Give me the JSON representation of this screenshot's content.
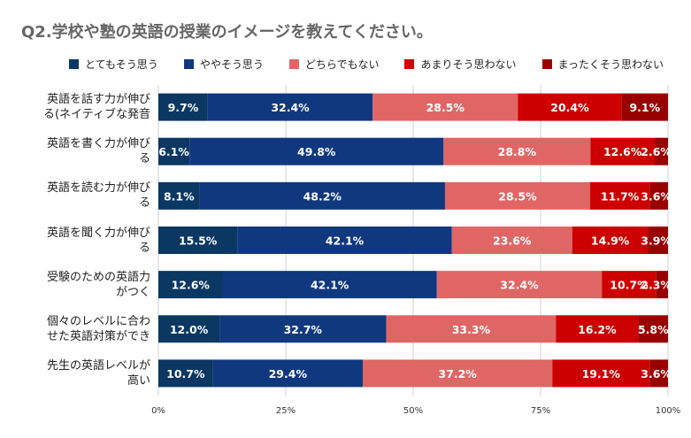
{
  "chart_data": {
    "type": "bar",
    "orientation": "horizontal",
    "stacked": true,
    "percent_stacked": true,
    "title": "Q2.学校や塾の英語の授業のイメージを教えてください。",
    "legend_position": "top",
    "categories": [
      [
        "英語を話す力が伸び",
        "る(ネイティブな発音"
      ],
      [
        "英語を書く力が伸び",
        "る"
      ],
      [
        "英語を読む力が伸び",
        "る"
      ],
      [
        "英語を聞く力が伸び",
        "る"
      ],
      [
        "受験のための英語力",
        "がつく"
      ],
      [
        "個々のレベルに合わ",
        "せた英語対策ができ"
      ],
      [
        "先生の英語レベルが",
        "高い"
      ]
    ],
    "series": [
      {
        "name": "とてもそう思う",
        "color": "#0b3763",
        "values": [
          9.7,
          6.1,
          8.1,
          15.5,
          12.6,
          12.0,
          10.7
        ]
      },
      {
        "name": "ややそう思う",
        "color": "#10387f",
        "values": [
          32.4,
          49.8,
          48.2,
          42.1,
          42.1,
          32.7,
          29.4
        ]
      },
      {
        "name": "どちらでもない",
        "color": "#e06666",
        "values": [
          28.5,
          28.8,
          28.5,
          23.6,
          32.4,
          33.3,
          37.2
        ]
      },
      {
        "name": "あまりそう思わない",
        "color": "#cc0000",
        "values": [
          20.4,
          12.6,
          11.7,
          14.9,
          10.7,
          16.2,
          19.1
        ]
      },
      {
        "name": "まったくそう思わない",
        "color": "#990000",
        "values": [
          9.1,
          2.6,
          3.6,
          3.9,
          2.3,
          5.8,
          3.6
        ]
      }
    ],
    "data_labels": [
      [
        "9.7%",
        "32.4%",
        "28.5%",
        "20.4%",
        "9.1%"
      ],
      [
        "6.1%",
        "49.8%",
        "28.8%",
        "12.6%",
        "2.6%"
      ],
      [
        "8.1%",
        "48.2%",
        "28.5%",
        "11.7%",
        "3.6%"
      ],
      [
        "15.5%",
        "42.1%",
        "23.6%",
        "14.9%",
        "3.9%"
      ],
      [
        "12.6%",
        "42.1%",
        "32.4%",
        "10.7%",
        "2.3%"
      ],
      [
        "12.0%",
        "32.7%",
        "33.3%",
        "16.2%",
        "5.8%"
      ],
      [
        "10.7%",
        "29.4%",
        "37.2%",
        "19.1%",
        "3.6%"
      ]
    ],
    "x_ticks": [
      "0%",
      "25%",
      "50%",
      "75%",
      "100%"
    ],
    "xlim": [
      0,
      100
    ],
    "xlabel": "",
    "ylabel": "",
    "grid": true
  }
}
